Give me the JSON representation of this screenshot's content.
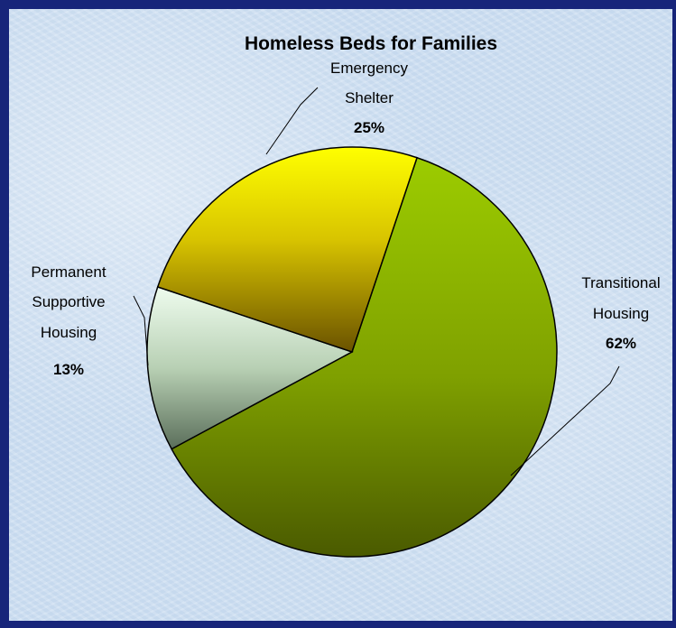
{
  "chart_data": {
    "type": "pie",
    "title": "Homeless Beds for Families",
    "slices": [
      {
        "label_lines": [
          "Transitional",
          "Housing"
        ],
        "value": 62,
        "value_label": "62%",
        "color": "#8fb800"
      },
      {
        "label_lines": [
          "Permanent",
          "Supportive",
          "Housing"
        ],
        "value": 13,
        "value_label": "13%",
        "color": "#e4f8e0"
      },
      {
        "label_lines": [
          "Emergency",
          "Shelter"
        ],
        "value": 25,
        "value_label": "25%",
        "color": "#f0e000"
      }
    ],
    "legend": "none"
  }
}
